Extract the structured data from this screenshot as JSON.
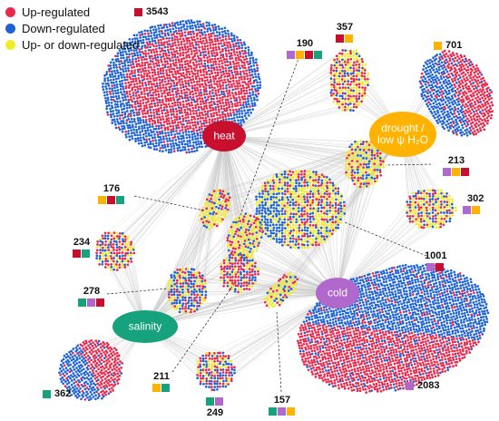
{
  "colors": {
    "up": "#e8294d",
    "down": "#1e63d6",
    "either": "#f0ec2a",
    "heat": "#c8102e",
    "drought": "#ffb300",
    "cold": "#b168cc",
    "salinity": "#15a27c",
    "edge": "#c9c9c9"
  },
  "legend": {
    "up": "Up-regulated",
    "down": "Down-regulated",
    "either": "Up- or down-regulated"
  },
  "hubs": {
    "heat": "heat",
    "drought_line1": "drought /",
    "drought_line2": "low ψ H₂O",
    "cold": "cold",
    "salinity": "salinity"
  },
  "counts": {
    "heat_only": "3543",
    "drought_only": "701",
    "cold_only": "2083",
    "salinity_only": "362",
    "c190": "190",
    "c357": "357",
    "c213": "213",
    "c302": "302",
    "c176": "176",
    "c234": "234",
    "c278": "278",
    "c1001": "1001",
    "c211": "211",
    "c249": "249",
    "c157": "157"
  }
}
